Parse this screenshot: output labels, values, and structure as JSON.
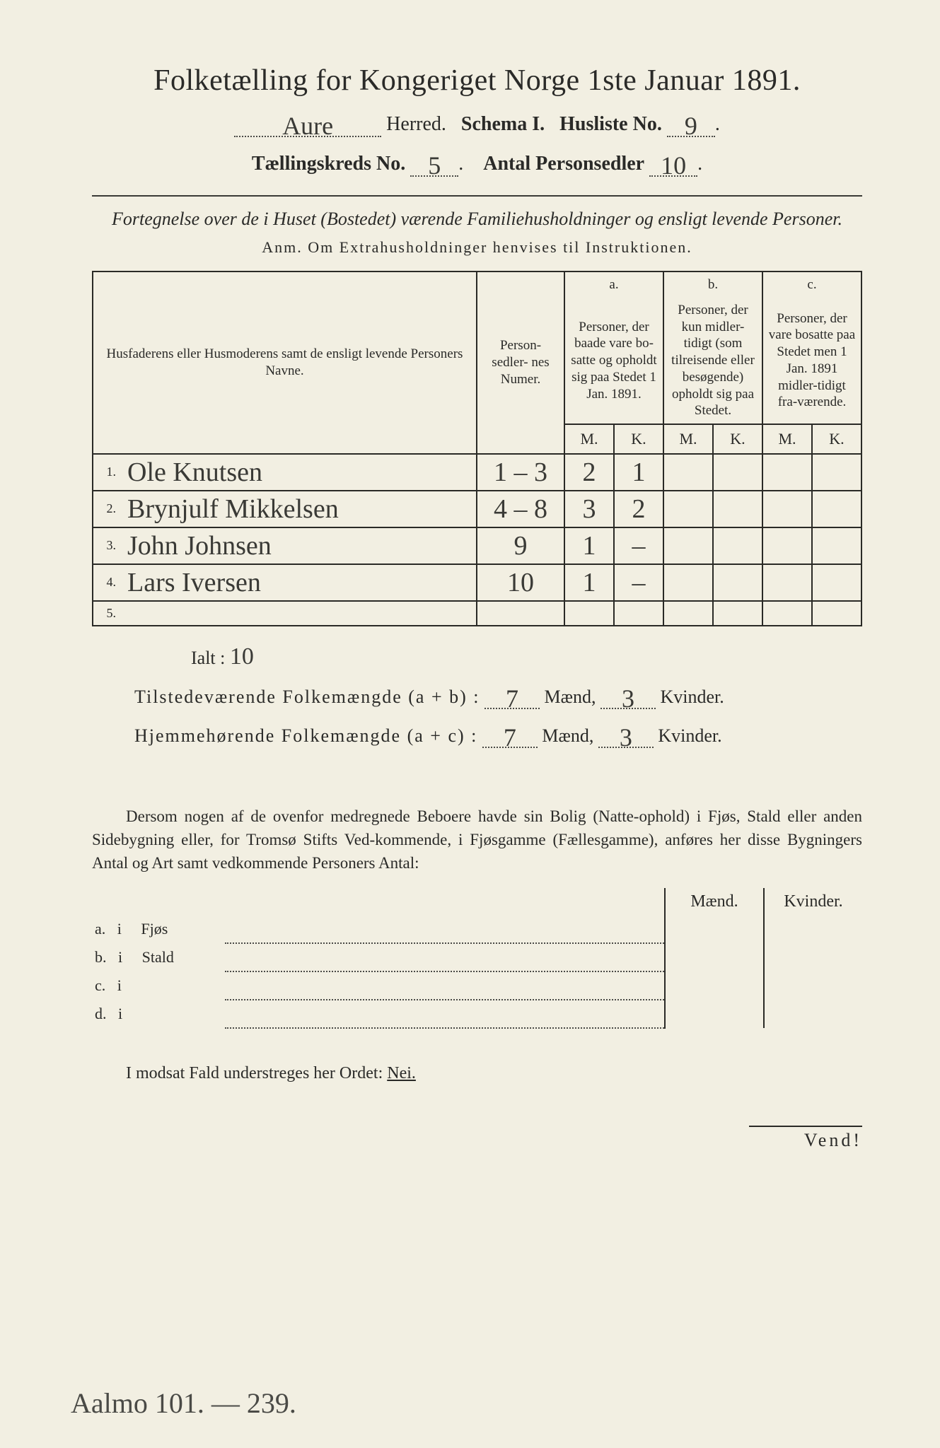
{
  "colors": {
    "paper": "#f2efe2",
    "ink": "#2a2a28",
    "border": "#2a2a26",
    "dots": "#4a4a46",
    "background": "#8a8a88"
  },
  "header": {
    "title": "Folketælling for Kongeriget Norge 1ste Januar 1891.",
    "herred_value": "Aure",
    "herred_label": "Herred.",
    "schema_label": "Schema I.",
    "husliste_label": "Husliste No.",
    "husliste_value": "9",
    "kreds_label": "Tællingskreds No.",
    "kreds_value": "5",
    "antal_label": "Antal Personsedler",
    "antal_value": "10"
  },
  "subtitle": "Fortegnelse over de i Huset (Bostedet) værende Familiehusholdninger og ensligt levende Personer.",
  "anm": "Anm.  Om Extrahusholdninger henvises til Instruktionen.",
  "table": {
    "col_names": "Husfaderens eller Husmoderens samt de ensligt levende Personers Navne.",
    "col_numer": "Person-\nsedler-\nnes\nNumer.",
    "col_a_top": "a.",
    "col_a": "Personer, der baade vare bo-satte og opholdt sig paa Stedet 1 Jan. 1891.",
    "col_b_top": "b.",
    "col_b": "Personer, der kun midler-tidigt (som tilreisende eller besøgende) opholdt sig paa Stedet.",
    "col_c_top": "c.",
    "col_c": "Personer, der vare bosatte paa Stedet men 1 Jan. 1891 midler-tidigt fra-værende.",
    "mk_m": "M.",
    "mk_k": "K.",
    "rows": [
      {
        "n": "1.",
        "name": "Ole Knutsen",
        "numer": "1 – 3",
        "a_m": "2",
        "a_k": "1",
        "b_m": "",
        "b_k": "",
        "c_m": "",
        "c_k": ""
      },
      {
        "n": "2.",
        "name": "Brynjulf Mikkelsen",
        "numer": "4 – 8",
        "a_m": "3",
        "a_k": "2",
        "b_m": "",
        "b_k": "",
        "c_m": "",
        "c_k": ""
      },
      {
        "n": "3.",
        "name": "John Johnsen",
        "numer": "9",
        "a_m": "1",
        "a_k": "–",
        "b_m": "",
        "b_k": "",
        "c_m": "",
        "c_k": ""
      },
      {
        "n": "4.",
        "name": "Lars Iversen",
        "numer": "10",
        "a_m": "1",
        "a_k": "–",
        "b_m": "",
        "b_k": "",
        "c_m": "",
        "c_k": ""
      },
      {
        "n": "5.",
        "name": "",
        "numer": "",
        "a_m": "",
        "a_k": "",
        "b_m": "",
        "b_k": "",
        "c_m": "",
        "c_k": ""
      }
    ]
  },
  "ialt_label": "Ialt :",
  "ialt_value": "10",
  "sum1": {
    "label": "Tilstedeværende Folkemængde (a + b) :",
    "m": "7",
    "k": "3",
    "m_label": "Mænd,",
    "k_label": "Kvinder."
  },
  "sum2": {
    "label": "Hjemmehørende Folkemængde (a + c) :",
    "m": "7",
    "k": "3",
    "m_label": "Mænd,",
    "k_label": "Kvinder."
  },
  "paragraph": "Dersom nogen af de ovenfor medregnede Beboere havde sin Bolig (Natte-ophold) i Fjøs, Stald eller anden Sidebygning eller, for Tromsø Stifts Ved-kommende, i Fjøsgamme (Fællesgamme), anføres her disse Bygningers Antal og Art samt vedkommende Personers Antal:",
  "side": {
    "head_m": "Mænd.",
    "head_k": "Kvinder.",
    "rows": [
      {
        "k": "a.",
        "i": "i",
        "label": "Fjøs"
      },
      {
        "k": "b.",
        "i": "i",
        "label": "Stald"
      },
      {
        "k": "c.",
        "i": "i",
        "label": ""
      },
      {
        "k": "d.",
        "i": "i",
        "label": ""
      }
    ]
  },
  "nei_line": "I modsat Fald understreges her Ordet:",
  "nei_word": "Nei.",
  "vend": "Vend!",
  "foot": "Aalmo 101. — 239."
}
